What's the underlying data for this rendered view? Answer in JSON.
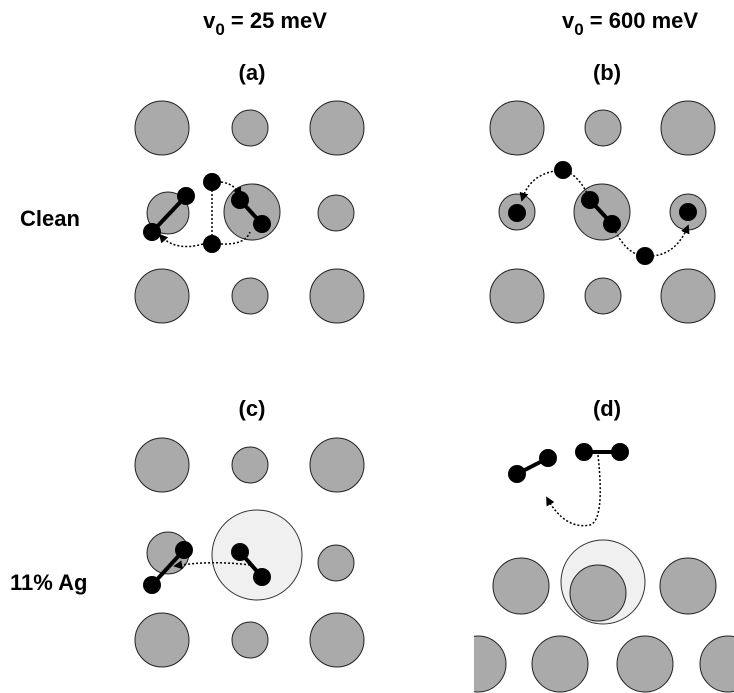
{
  "columns": [
    {
      "symbol": "v",
      "subscript": "0",
      "text": " = 25 meV"
    },
    {
      "symbol": "v",
      "subscript": "0",
      "text": " = 600 meV"
    }
  ],
  "panels": [
    {
      "label": "(a)"
    },
    {
      "label": "(b)"
    },
    {
      "label": "(c)"
    },
    {
      "label": "(d)"
    }
  ],
  "rows": [
    {
      "label": "Clean"
    },
    {
      "label": "11% Ag"
    }
  ]
}
